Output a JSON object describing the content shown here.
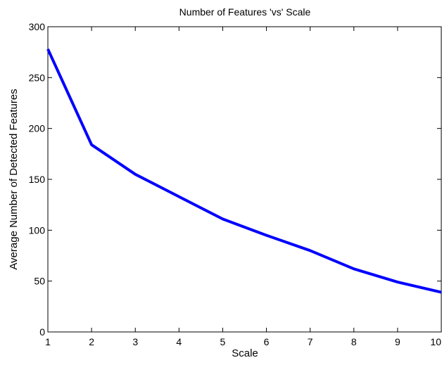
{
  "chart_data": {
    "type": "line",
    "title": "Number of Features 'vs' Scale",
    "xlabel": "Scale",
    "ylabel": "Average Number of Detected Features",
    "xlim": [
      1,
      10
    ],
    "ylim": [
      0,
      300
    ],
    "x_ticks": [
      1,
      2,
      3,
      4,
      5,
      6,
      7,
      8,
      9,
      10
    ],
    "y_ticks": [
      0,
      50,
      100,
      150,
      200,
      250,
      300
    ],
    "grid": false,
    "legend": "none",
    "series": [
      {
        "color": "#0000ff",
        "x": [
          1,
          2,
          3,
          4,
          5,
          6,
          7,
          8,
          9,
          10
        ],
        "y": [
          278,
          184,
          155,
          133,
          111,
          95,
          80,
          62,
          49,
          39
        ]
      }
    ]
  }
}
